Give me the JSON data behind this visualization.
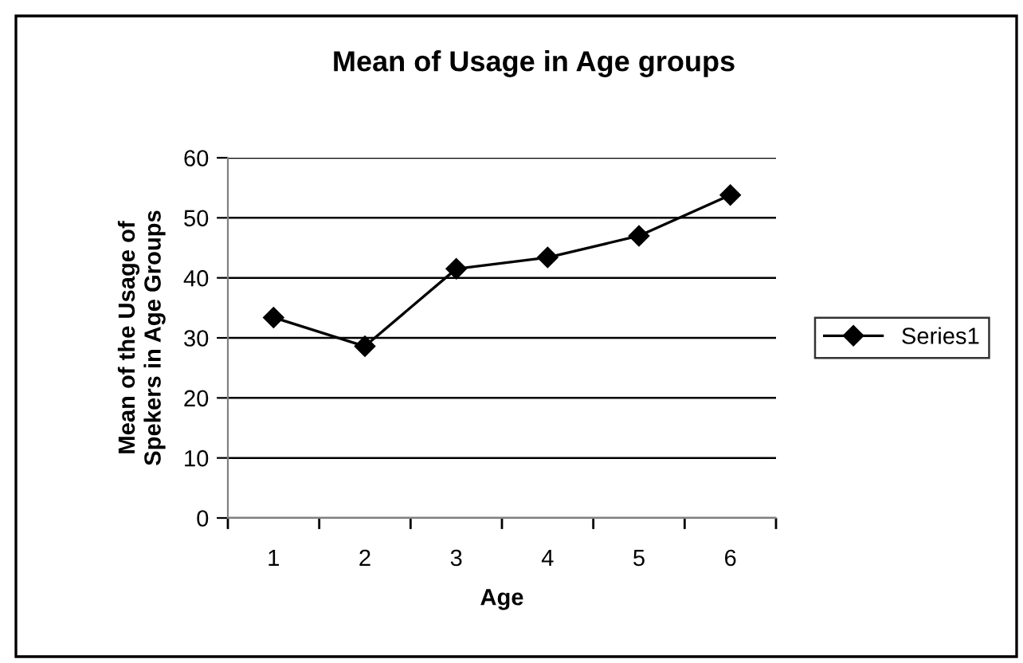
{
  "chart_data": {
    "type": "line",
    "title": "Mean of Usage in Age groups",
    "xlabel": "Age",
    "ylabel": "Mean of the Usage of\nSpekers in Age Groups",
    "categories": [
      "1",
      "2",
      "3",
      "4",
      "5",
      "6"
    ],
    "series": [
      {
        "name": "Series1",
        "color": "#000000",
        "values": [
          33.4,
          28.6,
          41.5,
          43.4,
          47.0,
          53.8
        ]
      }
    ],
    "ylim": [
      0,
      60
    ],
    "yticks": [
      0,
      10,
      20,
      30,
      40,
      50,
      60
    ],
    "grid": "y",
    "legend": "right",
    "marker": "diamond",
    "line_style": "solid"
  }
}
